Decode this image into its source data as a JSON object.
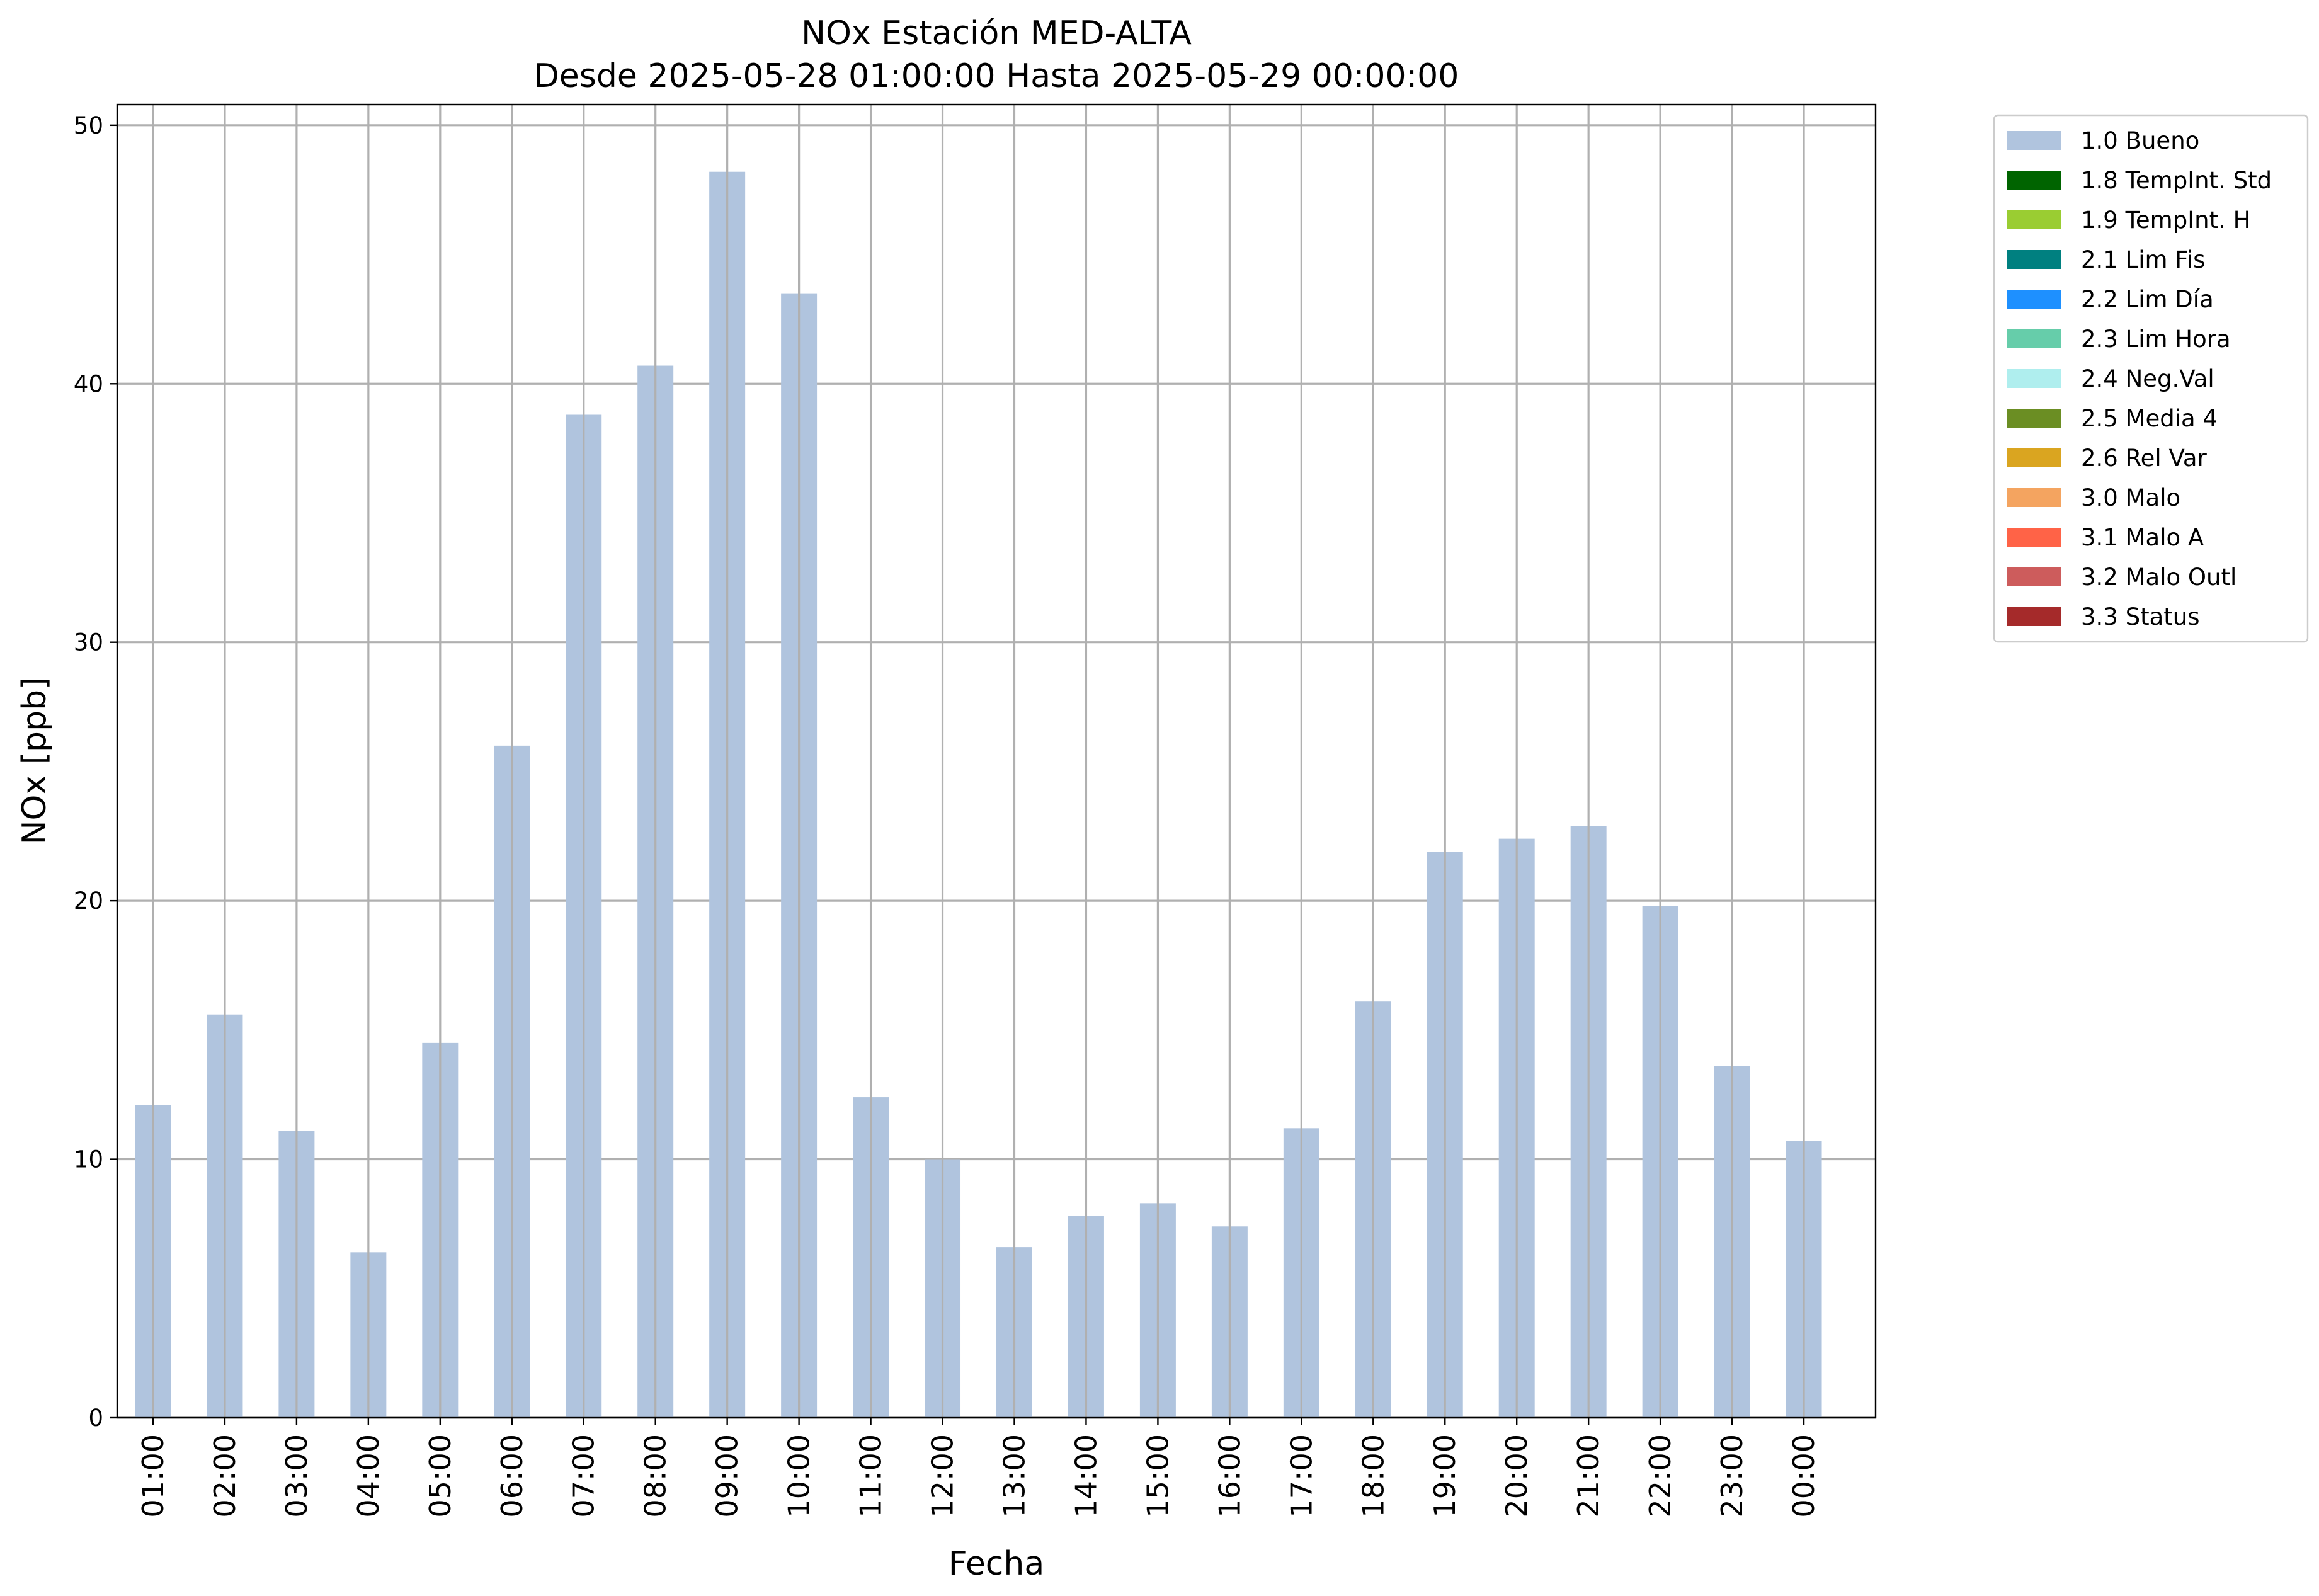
{
  "chart_data": {
    "type": "bar",
    "title": "NOx Estación MED-ALTA",
    "subtitle": "Desde 2025-05-28 01:00:00 Hasta 2025-05-29 00:00:00",
    "xlabel": "Fecha",
    "ylabel": "NOx [ppb]",
    "ylim": [
      0,
      50.8
    ],
    "yticks": [
      0,
      10,
      20,
      30,
      40,
      50
    ],
    "grid": true,
    "legend_position": "outside-top-right",
    "categories": [
      "01:00",
      "02:00",
      "03:00",
      "04:00",
      "05:00",
      "06:00",
      "07:00",
      "08:00",
      "09:00",
      "10:00",
      "11:00",
      "12:00",
      "13:00",
      "14:00",
      "15:00",
      "16:00",
      "17:00",
      "18:00",
      "19:00",
      "20:00",
      "21:00",
      "22:00",
      "23:00",
      "00:00"
    ],
    "series": [
      {
        "name": "1.0 Bueno",
        "color": "#b0c4de",
        "values": [
          12.1,
          15.6,
          11.1,
          6.4,
          14.5,
          26.0,
          38.8,
          40.7,
          48.2,
          43.5,
          12.4,
          10.0,
          6.6,
          7.8,
          8.3,
          7.4,
          11.2,
          16.1,
          21.9,
          22.4,
          22.9,
          19.8,
          13.6,
          10.7
        ]
      }
    ],
    "legend": [
      {
        "label": "1.0 Bueno",
        "color": "#b0c4de"
      },
      {
        "label": "1.8 TempInt. Std",
        "color": "#006400"
      },
      {
        "label": "1.9 TempInt. H",
        "color": "#9acd32"
      },
      {
        "label": "2.1 Lim Fis",
        "color": "#008080"
      },
      {
        "label": "2.2 Lim Día",
        "color": "#1e90ff"
      },
      {
        "label": "2.3 Lim Hora",
        "color": "#66cdaa"
      },
      {
        "label": "2.4 Neg.Val",
        "color": "#afeeee"
      },
      {
        "label": "2.5 Media 4",
        "color": "#6b8e23"
      },
      {
        "label": "2.6 Rel Var",
        "color": "#daa520"
      },
      {
        "label": "3.0 Malo",
        "color": "#f4a460"
      },
      {
        "label": "3.1 Malo A",
        "color": "#ff6347"
      },
      {
        "label": "3.2 Malo Outl",
        "color": "#cd5c5c"
      },
      {
        "label": "3.3 Status",
        "color": "#a52a2a"
      }
    ]
  }
}
